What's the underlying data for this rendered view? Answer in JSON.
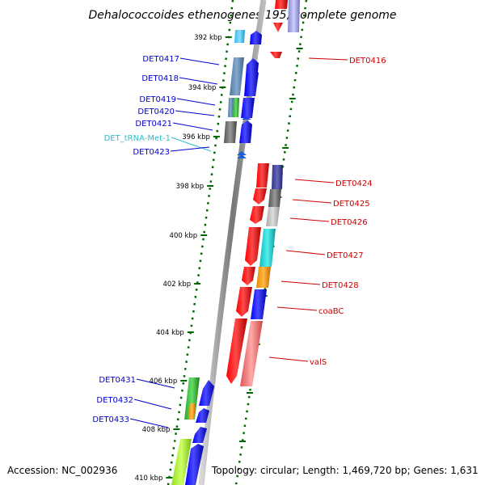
{
  "title": "Dehalococcoides ethenogenes 195, complete genome",
  "accession": "Accession: NC_002936",
  "topology": "Topology: circular; Length: 1,469,720 bp; Genes: 1,631",
  "colors": {
    "forward_label": "#0000cc",
    "reverse_label": "#cc0000",
    "trna_label": "#33bbcc",
    "scale_tick": "#006600",
    "backbone": "#888888"
  },
  "scale_ticks": [
    "392 kbp",
    "394 kbp",
    "396 kbp",
    "398 kbp",
    "400 kbp",
    "402 kbp",
    "404 kbp",
    "406 kbp",
    "408 kbp",
    "410 kbp"
  ],
  "forward_labels": [
    {
      "text": "DET0417",
      "color": "#0000cc"
    },
    {
      "text": "DET0418",
      "color": "#0000cc"
    },
    {
      "text": "DET0419",
      "color": "#0000cc"
    },
    {
      "text": "DET0420",
      "color": "#0000cc"
    },
    {
      "text": "DET0421",
      "color": "#0000cc"
    },
    {
      "text": "DET_tRNA-Met-1",
      "color": "#33bbcc"
    },
    {
      "text": "DET0423",
      "color": "#0000cc"
    },
    {
      "text": "DET0431",
      "color": "#0000cc"
    },
    {
      "text": "DET0432",
      "color": "#0000cc"
    },
    {
      "text": "DET0433",
      "color": "#0000cc"
    }
  ],
  "reverse_labels": [
    {
      "text": "DET0416",
      "color": "#cc0000"
    },
    {
      "text": "DET0424",
      "color": "#cc0000"
    },
    {
      "text": "DET0425",
      "color": "#cc0000"
    },
    {
      "text": "DET0426",
      "color": "#cc0000"
    },
    {
      "text": "DET0427",
      "color": "#cc0000"
    },
    {
      "text": "DET0428",
      "color": "#cc0000"
    },
    {
      "text": "coaBC",
      "color": "#cc0000"
    },
    {
      "text": "valS",
      "color": "#cc0000"
    }
  ]
}
